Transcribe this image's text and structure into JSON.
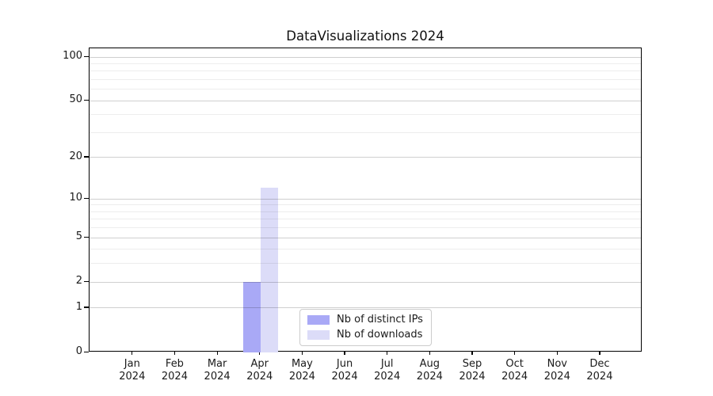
{
  "chart_data": {
    "type": "bar",
    "title": "DataVisualizations 2024",
    "categories": [
      "Jan",
      "Feb",
      "Mar",
      "Apr",
      "May",
      "Jun",
      "Jul",
      "Aug",
      "Sep",
      "Oct",
      "Nov",
      "Dec"
    ],
    "xtick_year": "2024",
    "series": [
      {
        "name": "Nb of distinct IPs",
        "color": "#a9a9f6",
        "values": [
          0,
          0,
          0,
          2,
          0,
          0,
          0,
          0,
          0,
          0,
          0,
          0
        ]
      },
      {
        "name": "Nb of downloads",
        "color": "#dcdcf8",
        "values": [
          0,
          0,
          0,
          12,
          0,
          0,
          0,
          0,
          0,
          0,
          0,
          0
        ]
      }
    ],
    "xlabel": "",
    "ylabel": "",
    "yscale": "log1p",
    "ylim": [
      0,
      112
    ],
    "yticks": [
      0,
      1,
      2,
      5,
      10,
      20,
      50,
      100
    ],
    "minor_gridlines": [
      3,
      4,
      6,
      7,
      8,
      9,
      30,
      40,
      60,
      70,
      80,
      90
    ],
    "grid": true,
    "legend_position": "lower center"
  },
  "colors": {
    "grid_major": "rgba(0,0,0,0.19)",
    "grid_minor": "rgba(0,0,0,0.07)",
    "spine": "#000000",
    "background": "#ffffff"
  }
}
